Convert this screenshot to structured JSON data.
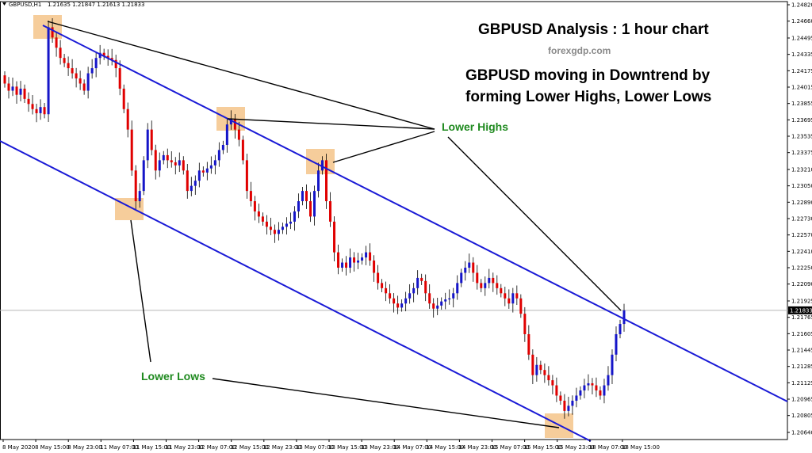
{
  "chart_header": {
    "symbol": "GBPUSD,H1",
    "ohlc": "1.21635 1.21847 1.21613 1.21833"
  },
  "annotations": {
    "title": "GBPUSD Analysis : 1 hour chart",
    "site": "forexgdp.com",
    "line1": "GBPUSD moving in Downtrend by",
    "line2": "forming Lower Highs, Lower Lows",
    "lower_highs": "Lower Highs",
    "lower_lows": "Lower Lows"
  },
  "colors": {
    "bull": "#1515c8",
    "bear": "#e00000",
    "channel": "#1a1ad6",
    "highlight": "#f5c48a",
    "green_label": "#1f8a1f"
  },
  "chart_data": {
    "type": "candlestick",
    "symbol": "GBPUSD",
    "timeframe": "H1",
    "title": "",
    "current_price": "1.21833",
    "ylim": [
      1.2064,
      1.2482
    ],
    "y_ticks": [
      "1.24820",
      "1.24660",
      "1.24495",
      "1.24335",
      "1.24175",
      "1.24015",
      "1.23855",
      "1.23695",
      "1.23535",
      "1.23375",
      "1.23210",
      "1.23050",
      "1.22890",
      "1.22730",
      "1.22570",
      "1.22410",
      "1.22250",
      "1.22090",
      "1.21925",
      "1.21765",
      "1.21605",
      "1.21445",
      "1.21285",
      "1.21125",
      "1.20965",
      "1.20805",
      "1.20640"
    ],
    "x_ticks": [
      "8 May 2020",
      "8 May 15:00",
      "8 May 23:00",
      "11 May 07:00",
      "11 May 15:00",
      "11 May 23:00",
      "12 May 07:00",
      "12 May 15:00",
      "12 May 23:00",
      "13 May 07:00",
      "13 May 15:00",
      "13 May 23:00",
      "14 May 07:00",
      "14 May 15:00",
      "14 May 23:00",
      "15 May 07:00",
      "15 May 15:00",
      "15 May 23:00",
      "18 May 07:00",
      "18 May 15:00"
    ],
    "closes": [
      1.2405,
      1.2398,
      1.2402,
      1.2394,
      1.24,
      1.239,
      1.2385,
      1.238,
      1.2376,
      1.2382,
      1.2375,
      1.246,
      1.245,
      1.244,
      1.243,
      1.2425,
      1.242,
      1.2415,
      1.241,
      1.2405,
      1.2398,
      1.2415,
      1.242,
      1.243,
      1.2435,
      1.2432,
      1.243,
      1.2428,
      1.242,
      1.24,
      1.238,
      1.236,
      1.232,
      1.229,
      1.23,
      1.233,
      1.236,
      1.234,
      1.232,
      1.233,
      1.2335,
      1.233,
      1.2328,
      1.2325,
      1.233,
      1.232,
      1.23,
      1.2305,
      1.231,
      1.232,
      1.2318,
      1.2322,
      1.2325,
      1.233,
      1.234,
      1.2345,
      1.2365,
      1.237,
      1.236,
      1.235,
      1.233,
      1.23,
      1.229,
      1.228,
      1.2275,
      1.227,
      1.2265,
      1.2262,
      1.2258,
      1.2262,
      1.2265,
      1.2268,
      1.227,
      1.228,
      1.229,
      1.23,
      1.229,
      1.2275,
      1.23,
      1.232,
      1.233,
      1.229,
      1.227,
      1.224,
      1.2225,
      1.223,
      1.2225,
      1.2235,
      1.223,
      1.2232,
      1.2235,
      1.224,
      1.2232,
      1.222,
      1.221,
      1.2205,
      1.22,
      1.2195,
      1.219,
      1.2186,
      1.219,
      1.2195,
      1.22,
      1.2205,
      1.2215,
      1.2212,
      1.22,
      1.219,
      1.2185,
      1.2188,
      1.2192,
      1.2194,
      1.2195,
      1.22,
      1.221,
      1.222,
      1.2225,
      1.223,
      1.222,
      1.221,
      1.2205,
      1.221,
      1.2215,
      1.221,
      1.2205,
      1.22,
      1.2195,
      1.219,
      1.22,
      1.2195,
      1.218,
      1.216,
      1.214,
      1.212,
      1.213,
      1.2125,
      1.212,
      1.2115,
      1.211,
      1.21,
      1.2095,
      1.2085,
      1.209,
      1.2095,
      1.21,
      1.2105,
      1.211,
      1.2112,
      1.211,
      1.2105,
      1.21,
      1.211,
      1.212,
      1.214,
      1.216,
      1.217,
      1.21833
    ]
  }
}
